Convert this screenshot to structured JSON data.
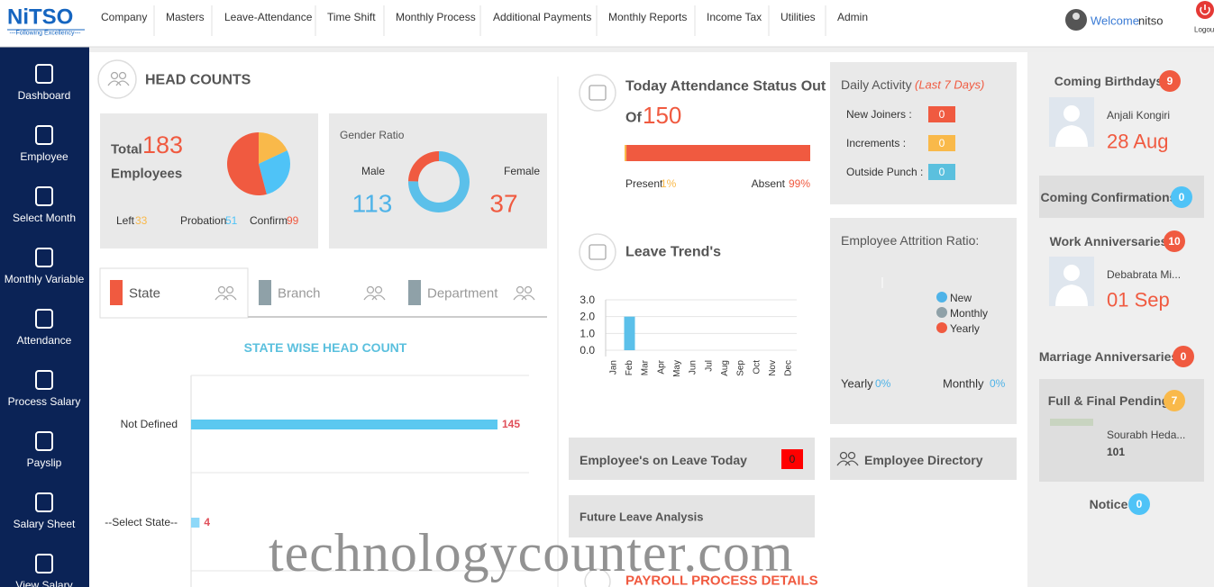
{
  "header": {
    "logo": "NiTSO",
    "tagline": "---Following Excellency---",
    "menu": [
      "Company",
      "Masters",
      "Leave-Attendance",
      "Time Shift",
      "Monthly Process",
      "Additional Payments",
      "Monthly Reports",
      "Income Tax",
      "Utilities",
      "Admin"
    ],
    "welcome": "Welcome",
    "user": "nitso",
    "logout": "Logou"
  },
  "sidebar": [
    "Dashboard",
    "Employee",
    "Select Month",
    "Monthly Variable",
    "Attendance",
    "Process Salary",
    "Payslip",
    "Salary Sheet",
    "View Salary"
  ],
  "head_counts": {
    "title": "HEAD COUNTS",
    "total_label": "Total",
    "total": 183,
    "employees_label": "Employees",
    "left_label": "Left",
    "left": 33,
    "probation_label": "Probation",
    "probation": 51,
    "confirm_label": "Confirm",
    "confirm": 99
  },
  "gender": {
    "title": "Gender Ratio",
    "male_label": "Male",
    "male": 113,
    "female_label": "Female",
    "female": 37
  },
  "tabs": [
    "State",
    "Branch",
    "Department"
  ],
  "state_chart": {
    "title": "STATE WISE HEAD COUNT",
    "categories": [
      "Not Defined",
      "--Select State--"
    ],
    "values": [
      145,
      4
    ]
  },
  "attendance": {
    "title": "Today Attendance Status Out",
    "of": "Of",
    "total": 150,
    "labels": [
      "Present",
      "Absent"
    ],
    "values": [
      1,
      99
    ],
    "value_labels": [
      "1%",
      "99%"
    ]
  },
  "daily_activity": {
    "title": "Daily Activity",
    "subtitle": "(Last 7 Days)",
    "items": [
      {
        "label": "New Joiners :",
        "value": 0
      },
      {
        "label": "Increments :",
        "value": 0
      },
      {
        "label": "Outside Punch :",
        "value": 0
      }
    ]
  },
  "leave_trend": {
    "title": "Leave Trend's",
    "categories": [
      "Jan",
      "Feb",
      "Mar",
      "Apr",
      "May",
      "Jun",
      "Jul",
      "Aug",
      "Sep",
      "Oct",
      "Nov",
      "Dec"
    ],
    "values": [
      0,
      2,
      0,
      0,
      0,
      0,
      0,
      0,
      0,
      0,
      0,
      0
    ],
    "ylim": [
      0,
      3
    ],
    "yticks": [
      {
        "value": 0,
        "label": "0.0"
      },
      {
        "value": 1,
        "label": "1.0"
      },
      {
        "value": 2,
        "label": "2.0"
      },
      {
        "value": 3,
        "label": "3.0"
      }
    ]
  },
  "attrition": {
    "title": "Employee Attrition Ratio:",
    "legend": [
      "New",
      "Monthly",
      "Yearly"
    ],
    "yearly_label": "Yearly",
    "yearly": "0%",
    "monthly_label": "Monthly",
    "monthly": "0%"
  },
  "on_leave": {
    "label": "Employee's on Leave Today",
    "count": 0
  },
  "directory": "Employee Directory",
  "future_leave": "Future Leave Analysis",
  "payroll": "PAYROLL PROCESS DETAILS",
  "right_panel": {
    "birthdays": {
      "title": "Coming Birthdays",
      "count": 9,
      "name": "Anjali Kongiri",
      "date": "28 Aug"
    },
    "confirmations": {
      "title": "Coming Confirmations",
      "count": 0
    },
    "work_anniversaries": {
      "title": "Work Anniversaries",
      "count": 10,
      "name": "Debabrata Mi...",
      "date": "01 Sep"
    },
    "marriage_anniversaries": {
      "title": "Marriage Anniversaries",
      "count": 0
    },
    "full_final": {
      "title": "Full & Final Pending",
      "count": 7,
      "name": "Sourabh Heda...",
      "code": 101
    },
    "notice": {
      "title": "Notice",
      "count": 0
    }
  },
  "watermark": "technologycounter.com"
}
